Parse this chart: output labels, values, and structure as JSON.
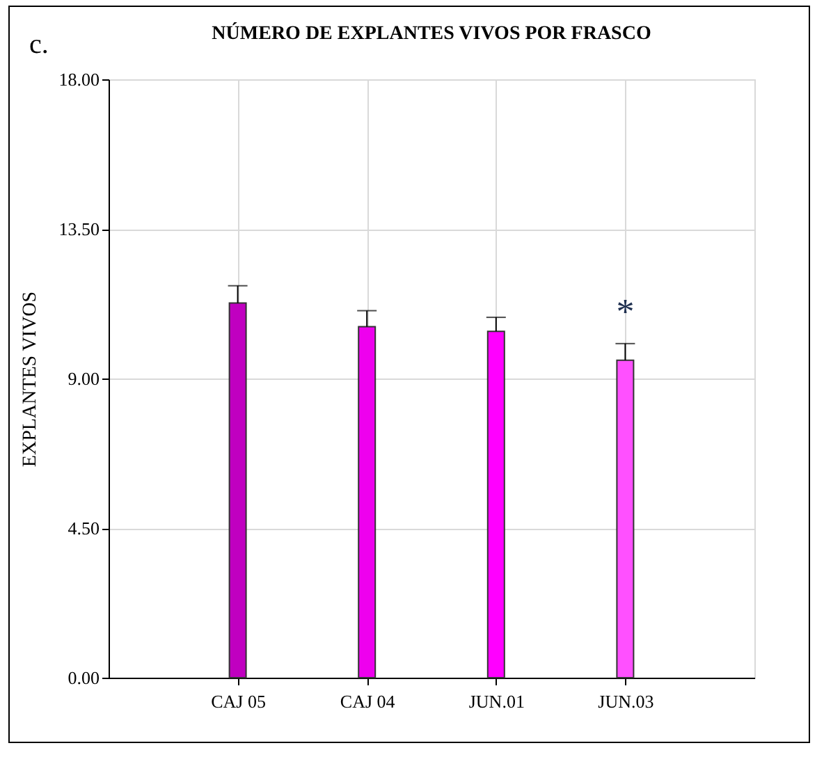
{
  "chart_data": {
    "type": "bar",
    "title": "NÚMERO DE EXPLANTES VIVOS POR FRASCO",
    "ylabel": "EXPLANTES VIVOS",
    "categories": [
      "CAJ 05",
      "CAJ 04",
      "JUN.01",
      "JUN.03"
    ],
    "values": [
      11.27,
      10.56,
      10.42,
      9.55
    ],
    "errors": [
      [
        11.27,
        11.79
      ],
      [
        10.56,
        11.04
      ],
      [
        10.42,
        10.84
      ],
      [
        9.55,
        10.05
      ]
    ],
    "colors": [
      "#c000c0",
      "#ee00ee",
      "#ff00ff",
      "#ff50ff"
    ],
    "ylim": [
      0,
      18
    ],
    "yticks": [
      {
        "value": 0,
        "label": "0.00"
      },
      {
        "value": 4.5,
        "label": "4.50"
      },
      {
        "value": 9,
        "label": "9.00"
      },
      {
        "value": 13.5,
        "label": "13.50"
      },
      {
        "value": 18,
        "label": "18.00"
      }
    ],
    "grid": true,
    "annotations": [
      "c.",
      "*"
    ]
  }
}
